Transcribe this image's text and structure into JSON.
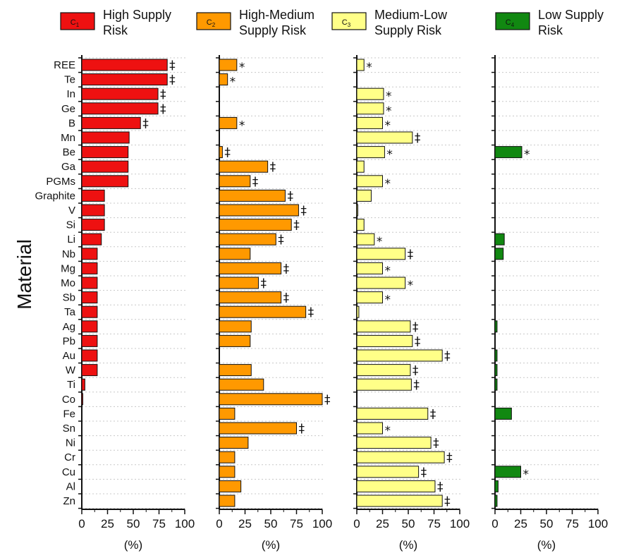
{
  "chart_data": {
    "type": "bar",
    "orientation": "horizontal",
    "ylabel": "Material",
    "xlabel": "(%)",
    "xlim": [
      0,
      100
    ],
    "xticks": [
      "0",
      "25",
      "50",
      "75",
      "100"
    ],
    "grid": "dotted horizontal lines",
    "legend_placement": "top",
    "categories": [
      "REE",
      "Te",
      "In",
      "Ge",
      "B",
      "Mn",
      "Be",
      "Ga",
      "PGMs",
      "Graphite",
      "V",
      "Si",
      "Li",
      "Nb",
      "Mg",
      "Mo",
      "Sb",
      "Ta",
      "Ag",
      "Pb",
      "Au",
      "W",
      "Ti",
      "Co",
      "Fe",
      "Sn",
      "Ni",
      "Cr",
      "Cu",
      "Al",
      "Zn"
    ],
    "series": [
      {
        "code": "C",
        "sub": "1",
        "name": [
          "High Supply",
          "Risk"
        ],
        "color": "#ee1111",
        "values": [
          83,
          83,
          74,
          74,
          57,
          46,
          45,
          45,
          45,
          22,
          22,
          22,
          19,
          15,
          15,
          15,
          15,
          15,
          15,
          15,
          15,
          15,
          3,
          1,
          0,
          0,
          0,
          0,
          0,
          0,
          0
        ],
        "marks": [
          "‡",
          "‡",
          "‡",
          "‡",
          "‡",
          "",
          "",
          "",
          "",
          "",
          "",
          "",
          "",
          "",
          "",
          "",
          "",
          "",
          "",
          "",
          "",
          "",
          "",
          "",
          "",
          "",
          "",
          "",
          "",
          "",
          ""
        ]
      },
      {
        "code": "C",
        "sub": "2",
        "name": [
          "High-Medium",
          "Supply Risk"
        ],
        "color": "#ff9900",
        "values": [
          17,
          8,
          0,
          0,
          17,
          0,
          3,
          47,
          30,
          64,
          77,
          70,
          55,
          30,
          60,
          38,
          60,
          84,
          31,
          30,
          0,
          31,
          43,
          100,
          15,
          75,
          28,
          15,
          15,
          21,
          15
        ],
        "marks": [
          "*",
          "*",
          "",
          "",
          "*",
          "",
          "‡",
          "‡",
          "‡",
          "‡",
          "‡",
          "‡",
          "‡",
          "",
          "‡",
          "‡",
          "‡",
          "‡",
          "",
          "",
          "",
          "",
          "",
          "‡",
          "",
          "‡",
          "",
          "",
          "",
          "",
          ""
        ]
      },
      {
        "code": "C",
        "sub": "3",
        "name": [
          "Medium-Low",
          "Supply Risk"
        ],
        "color": "#ffff88",
        "values": [
          7,
          0,
          26,
          26,
          25,
          54,
          27,
          7,
          25,
          14,
          1,
          7,
          17,
          47,
          25,
          47,
          25,
          2,
          52,
          54,
          83,
          52,
          53,
          0,
          69,
          25,
          72,
          85,
          60,
          76,
          83
        ],
        "marks": [
          "*",
          "",
          "*",
          "*",
          "*",
          "‡",
          "*",
          "",
          "*",
          "",
          "",
          "",
          "*",
          "‡",
          "*",
          "*",
          "*",
          "",
          "‡",
          "‡",
          "‡",
          "‡",
          "‡",
          "",
          "‡",
          "*",
          "‡",
          "‡",
          "‡",
          "‡",
          "‡"
        ]
      },
      {
        "code": "C",
        "sub": "4",
        "name": [
          "Low Supply",
          "Risk"
        ],
        "color": "#118811",
        "values": [
          0,
          0,
          0,
          0,
          0,
          0,
          26,
          0,
          0,
          0,
          0,
          0,
          9,
          8,
          0,
          0,
          0,
          0,
          2,
          0,
          2,
          2,
          2,
          0,
          16,
          0,
          0,
          0,
          25,
          3,
          2
        ],
        "marks": [
          "",
          "",
          "",
          "",
          "",
          "",
          "*",
          "",
          "",
          "",
          "",
          "",
          "",
          "",
          "",
          "",
          "",
          "",
          "",
          "",
          "",
          "",
          "",
          "",
          "",
          "",
          "",
          "",
          "*",
          "",
          ""
        ]
      }
    ]
  }
}
